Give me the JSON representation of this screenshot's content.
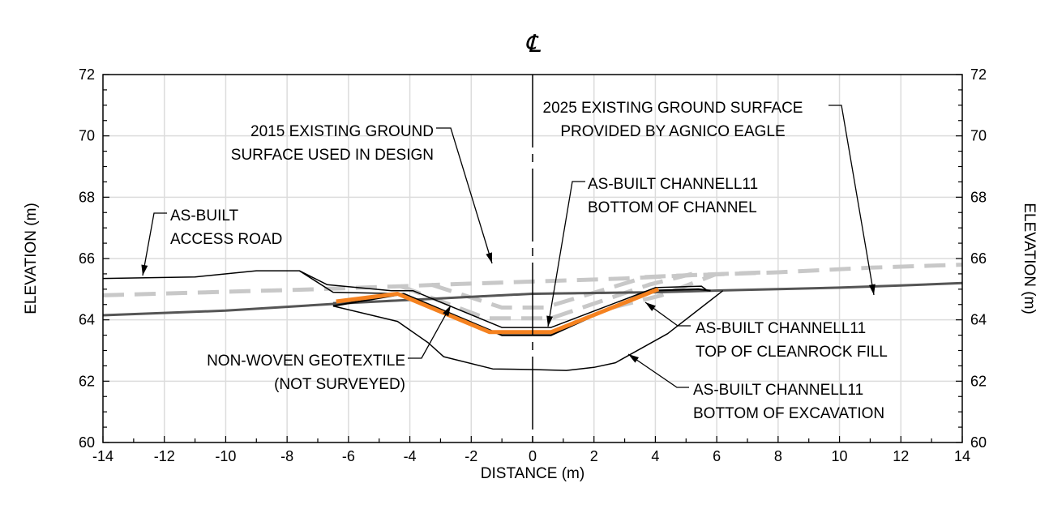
{
  "chart_data": {
    "type": "line",
    "xlabel": "DISTANCE (m)",
    "ylabel": "ELEVATION (m)",
    "ylabel_right": "ELEVATION (m)",
    "xlim": [
      -14,
      14
    ],
    "ylim": [
      60,
      72
    ],
    "x_ticks": [
      -14,
      -12,
      -10,
      -8,
      -6,
      -4,
      -2,
      0,
      2,
      4,
      6,
      8,
      10,
      12,
      14
    ],
    "y_ticks": [
      60,
      62,
      64,
      66,
      68,
      70,
      72
    ],
    "grid": true,
    "centerline_label": "℄",
    "series": [
      {
        "id": "design2015",
        "color": "#c8c8c8",
        "dash": "dashed",
        "points": [
          [
            -14,
            64.8
          ],
          [
            -7,
            65.0
          ],
          [
            -4.2,
            65.1
          ],
          [
            -3,
            65.15
          ],
          [
            0,
            65.25
          ],
          [
            3,
            65.35
          ],
          [
            5,
            65.45
          ],
          [
            8,
            65.55
          ],
          [
            11,
            65.7
          ],
          [
            14,
            65.8
          ]
        ]
      },
      {
        "id": "design-channel-a",
        "color": "#c8c8c8",
        "dash": "dashed",
        "points": [
          [
            -4.3,
            65.1
          ],
          [
            -1.5,
            64.05
          ],
          [
            0.6,
            64.05
          ],
          [
            3.8,
            65.15
          ],
          [
            5.2,
            65.5
          ]
        ]
      },
      {
        "id": "design-channel-b",
        "color": "#c8c8c8",
        "dash": "dashed",
        "points": [
          [
            -3.3,
            65.15
          ],
          [
            -1.0,
            64.4
          ],
          [
            0.4,
            64.4
          ],
          [
            3.7,
            65.4
          ],
          [
            7.6,
            65.55
          ]
        ]
      },
      {
        "id": "design-channel-c",
        "color": "#c8c8c8",
        "dash": "dashed",
        "points": [
          [
            2.6,
            64.4
          ],
          [
            4.2,
            64.8
          ],
          [
            6.0,
            65.5
          ]
        ]
      },
      {
        "id": "existing2025",
        "color": "#555555",
        "dash": "solid",
        "points": [
          [
            -14,
            64.15
          ],
          [
            -10,
            64.3
          ],
          [
            -6,
            64.55
          ],
          [
            -2,
            64.75
          ],
          [
            0,
            64.85
          ],
          [
            4,
            64.9
          ],
          [
            5.8,
            64.95
          ],
          [
            8,
            65.0
          ],
          [
            10,
            65.05
          ],
          [
            12,
            65.12
          ],
          [
            14,
            65.2
          ]
        ]
      },
      {
        "id": "existing-hidden",
        "color": "#555555",
        "dash": "dashed",
        "points": [
          [
            -6.5,
            64.55
          ],
          [
            -4,
            64.65
          ],
          [
            -2,
            64.75
          ],
          [
            0,
            64.85
          ],
          [
            4,
            64.9
          ],
          [
            5.8,
            64.95
          ]
        ]
      },
      {
        "id": "access-road",
        "color": "#000000",
        "dash": "solid",
        "points": [
          [
            -14,
            65.35
          ],
          [
            -11,
            65.4
          ],
          [
            -9,
            65.6
          ],
          [
            -7.6,
            65.6
          ],
          [
            -6.7,
            65.15
          ],
          [
            -4.6,
            64.95
          ],
          [
            -3.9,
            64.95
          ],
          [
            -1.0,
            63.75
          ],
          [
            0.6,
            63.75
          ],
          [
            4.0,
            65.05
          ],
          [
            5.5,
            65.1
          ],
          [
            5.7,
            64.95
          ]
        ]
      },
      {
        "id": "access-road-toe",
        "color": "#000000",
        "dash": "solid",
        "points": [
          [
            -7.6,
            65.6
          ],
          [
            -6.5,
            64.9
          ],
          [
            -4.2,
            64.85
          ]
        ]
      },
      {
        "id": "cleanrock-top",
        "color": "#000000",
        "dash": "solid",
        "points": [
          [
            -6.5,
            64.45
          ],
          [
            -4.2,
            64.85
          ],
          [
            -1.0,
            63.5
          ],
          [
            0.6,
            63.5
          ],
          [
            3.8,
            64.95
          ],
          [
            5.4,
            65.0
          ],
          [
            5.8,
            64.95
          ]
        ]
      },
      {
        "id": "geotextile",
        "color": "#f58220",
        "dash": "solid",
        "points": [
          [
            -6.4,
            64.6
          ],
          [
            -4.4,
            64.85
          ],
          [
            -1.4,
            63.6
          ],
          [
            0.6,
            63.6
          ],
          [
            4.1,
            65.0
          ]
        ]
      },
      {
        "id": "excavation-bottom",
        "color": "#000000",
        "dash": "solid",
        "points": [
          [
            -6.5,
            64.45
          ],
          [
            -4.4,
            63.95
          ],
          [
            -3.4,
            63.25
          ],
          [
            -2.9,
            62.8
          ],
          [
            -1.3,
            62.4
          ],
          [
            0.0,
            62.38
          ],
          [
            1.1,
            62.35
          ],
          [
            2.0,
            62.45
          ],
          [
            2.7,
            62.6
          ],
          [
            4.4,
            63.55
          ],
          [
            6.2,
            64.95
          ]
        ]
      }
    ],
    "annotations": [
      {
        "id": "ann-2015",
        "lines": [
          "2015 EXISTING GROUND",
          "SURFACE USED IN DESIGN"
        ],
        "anchor": "end"
      },
      {
        "id": "ann-2025",
        "lines": [
          "2025 EXISTING GROUND SURFACE",
          "PROVIDED BY AGNICO EAGLE"
        ],
        "anchor": "middle"
      },
      {
        "id": "ann-access",
        "lines": [
          "AS-BUILT",
          "ACCESS ROAD"
        ],
        "anchor": "start"
      },
      {
        "id": "ann-channel",
        "lines": [
          "AS-BUILT CHANNELL11",
          "BOTTOM OF CHANNEL"
        ],
        "anchor": "start"
      },
      {
        "id": "ann-cleanrock",
        "lines": [
          "AS-BUILT CHANNELL11",
          "TOP OF CLEANROCK FILL"
        ],
        "anchor": "start"
      },
      {
        "id": "ann-geotextile",
        "lines": [
          "NON-WOVEN GEOTEXTILE",
          "(NOT SURVEYED)"
        ],
        "anchor": "end"
      },
      {
        "id": "ann-excavation",
        "lines": [
          "AS-BUILT CHANNELL11",
          "BOTTOM OF EXCAVATION"
        ],
        "anchor": "start"
      }
    ]
  }
}
